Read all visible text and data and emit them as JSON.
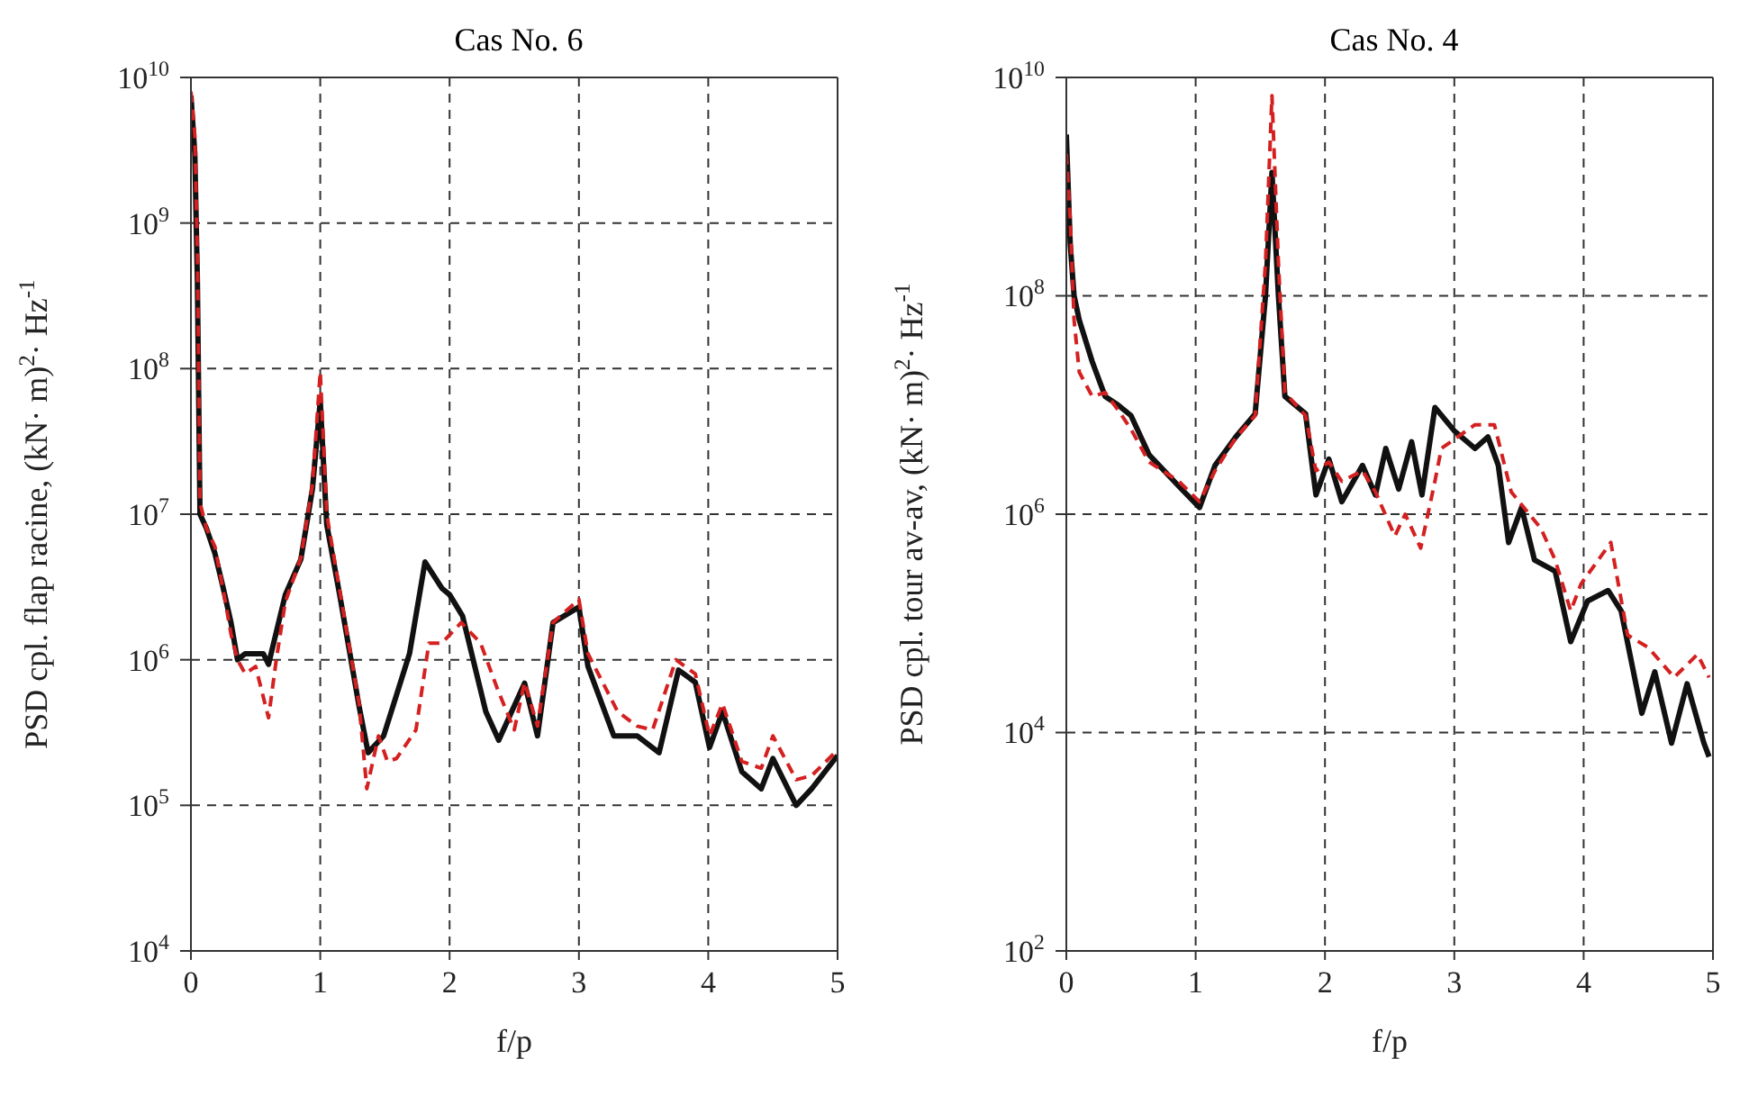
{
  "chart_data": [
    {
      "type": "line",
      "title": "Cas No. 6",
      "xlabel": "f/p",
      "ylabel": "PSD cpl. flap racine, (kN· m)$^{2}$· Hz$^{-1}$",
      "log": "y",
      "grid": true,
      "xlim": [
        0,
        5
      ],
      "xticks": [
        0,
        1,
        2,
        3,
        4,
        5
      ],
      "ylim": [
        10000,
        10000000000
      ],
      "yticks": [
        {
          "value": 10000,
          "label": "10$^{4}$"
        },
        {
          "value": 100000,
          "label": "10$^{5}$"
        },
        {
          "value": 1000000,
          "label": "10$^{6}$"
        },
        {
          "value": 10000000,
          "label": "10$^{7}$"
        },
        {
          "value": 100000000,
          "label": "10$^{8}$"
        },
        {
          "value": 1000000000,
          "label": "10$^{9}$"
        },
        {
          "value": 10000000000,
          "label": "10$^{10}$"
        }
      ],
      "series": [
        {
          "color": "#111111",
          "line_style": "solid",
          "x": [
            0,
            0.03,
            0.05,
            0.07,
            0.12,
            0.185,
            0.25,
            0.31,
            0.36,
            0.42,
            0.56,
            0.6,
            0.73,
            0.85,
            0.94,
            1.0,
            1.05,
            1.15,
            1.3,
            1.37,
            1.49,
            1.69,
            1.81,
            1.94,
            2.0,
            2.1,
            2.28,
            2.38,
            2.58,
            2.68,
            2.8,
            3.0,
            3.07,
            3.27,
            3.45,
            3.62,
            3.77,
            3.9,
            4.01,
            4.11,
            4.26,
            4.41,
            4.5,
            4.68,
            4.8,
            5
          ],
          "values": [
            7500000000,
            3000000000,
            400000000,
            10000000,
            8000000,
            5400000,
            3100000,
            1800000,
            1000000,
            1100000,
            1100000,
            930000,
            2800000,
            4900000,
            15000000,
            60000000,
            8500000,
            2800000,
            480000,
            230000,
            300000,
            1100000,
            4700000,
            3100000,
            2800000,
            2000000,
            440000,
            280000,
            690000,
            300000,
            1800000,
            2300000,
            900000,
            300000,
            300000,
            230000,
            850000,
            700000,
            250000,
            440000,
            170000,
            130000,
            210000,
            100000,
            130000,
            220000
          ]
        },
        {
          "color": "#d42020",
          "line_style": "dashed",
          "x": [
            0,
            0.03,
            0.05,
            0.07,
            0.12,
            0.185,
            0.25,
            0.31,
            0.36,
            0.42,
            0.5,
            0.6,
            0.66,
            0.73,
            0.85,
            0.94,
            1.0,
            1.05,
            1.15,
            1.3,
            1.36,
            1.45,
            1.52,
            1.59,
            1.74,
            1.84,
            1.94,
            2.09,
            2.24,
            2.37,
            2.5,
            2.58,
            2.68,
            2.8,
            3.0,
            3.07,
            3.3,
            3.45,
            3.57,
            3.75,
            3.9,
            4.01,
            4.11,
            4.26,
            4.41,
            4.5,
            4.68,
            4.8,
            5
          ],
          "values": [
            8000000000,
            4000000000,
            600000000,
            12000000,
            8000000,
            6000000,
            3000000,
            1500000,
            1000000,
            800000,
            900000,
            400000,
            1000000,
            2500000,
            5000000,
            16000000,
            95000000,
            10000000,
            3000000,
            500000,
            130000,
            300000,
            200000,
            210000,
            330000,
            1300000,
            1300000,
            1800000,
            1300000,
            630000,
            330000,
            700000,
            350000,
            1800000,
            2600000,
            1100000,
            440000,
            350000,
            330000,
            1000000,
            800000,
            300000,
            500000,
            200000,
            180000,
            300000,
            150000,
            160000,
            240000
          ]
        }
      ]
    },
    {
      "type": "line",
      "title": "Cas No. 4",
      "xlabel": "f/p",
      "ylabel": "PSD cpl. tour av-av, (kN· m)$^{2}$· Hz$^{-1}$",
      "log": "y",
      "grid": true,
      "xlim": [
        0,
        5
      ],
      "xticks": [
        0,
        1,
        2,
        3,
        4,
        5
      ],
      "ylim": [
        100,
        10000000000
      ],
      "yticks": [
        {
          "value": 100,
          "label": "10$^{2}$"
        },
        {
          "value": 10000,
          "label": "10$^{4}$"
        },
        {
          "value": 1000000,
          "label": "10$^{6}$"
        },
        {
          "value": 100000000,
          "label": "10$^{8}$"
        },
        {
          "value": 10000000000,
          "label": "10$^{10}$"
        }
      ],
      "series": [
        {
          "color": "#111111",
          "line_style": "solid",
          "x": [
            0,
            0.03,
            0.06,
            0.1,
            0.2,
            0.3,
            0.4,
            0.5,
            0.64,
            0.87,
            1.03,
            1.15,
            1.31,
            1.46,
            1.54,
            1.59,
            1.64,
            1.69,
            1.85,
            1.93,
            2.03,
            2.13,
            2.29,
            2.39,
            2.47,
            2.57,
            2.67,
            2.75,
            2.85,
            3.0,
            3.16,
            3.26,
            3.34,
            3.42,
            3.52,
            3.62,
            3.78,
            3.9,
            4.03,
            4.19,
            4.29,
            4.45,
            4.55,
            4.68,
            4.8,
            4.93,
            4.97
          ],
          "values": [
            3000000000,
            300000000,
            100000000,
            60000000,
            25000000,
            12000000,
            10000000,
            8000000,
            3500000,
            1800000,
            1150000,
            2800000,
            5100000,
            8300000,
            100000000,
            1350000000,
            100000000,
            12000000,
            8300000,
            1500000,
            3200000,
            1300000,
            2800000,
            1500000,
            4000000,
            1700000,
            4600000,
            1500000,
            9500000,
            5800000,
            4000000,
            5100000,
            2800000,
            550000,
            1150000,
            380000,
            300000,
            68000,
            160000,
            200000,
            130000,
            15000,
            36000,
            8000,
            28000,
            8000,
            6000
          ]
        },
        {
          "color": "#d42020",
          "line_style": "dashed",
          "x": [
            0,
            0.03,
            0.06,
            0.1,
            0.2,
            0.3,
            0.4,
            0.5,
            0.64,
            0.87,
            1.03,
            1.15,
            1.31,
            1.46,
            1.54,
            1.59,
            1.64,
            1.69,
            1.85,
            1.93,
            2.03,
            2.13,
            2.29,
            2.39,
            2.54,
            2.62,
            2.74,
            2.85,
            2.9,
            3.16,
            3.31,
            3.44,
            3.67,
            3.78,
            3.9,
            3.98,
            4.21,
            4.34,
            4.5,
            4.7,
            4.88,
            4.97
          ],
          "values": [
            2000000000,
            500000000,
            60000000,
            20000000,
            12000000,
            13000000,
            9000000,
            6000000,
            3000000,
            2000000,
            1300000,
            2500000,
            5000000,
            8000000,
            200000000,
            6800000000,
            200000000,
            13000000,
            8000000,
            2500000,
            3000000,
            2000000,
            2500000,
            1600000,
            630000,
            1000000,
            490000,
            2000000,
            4000000,
            6600000,
            6600000,
            1600000,
            740000,
            380000,
            130000,
            230000,
            550000,
            78000,
            60000,
            32000,
            52000,
            32000
          ]
        }
      ]
    }
  ]
}
